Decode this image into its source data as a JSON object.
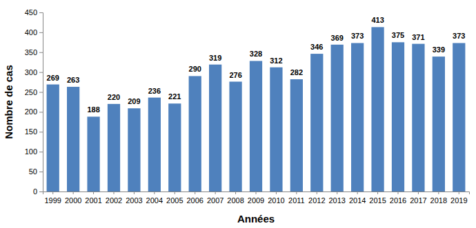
{
  "chart_data": {
    "type": "bar",
    "x_label": "Années",
    "y_label": "Nombre de cas",
    "categories": [
      "1999",
      "2000",
      "2001",
      "2002",
      "2003",
      "2004",
      "2005",
      "2006",
      "2007",
      "2008",
      "2009",
      "2010",
      "2011",
      "2012",
      "2013",
      "2014",
      "2015",
      "2016",
      "2017",
      "2018",
      "2019"
    ],
    "values": [
      269,
      263,
      188,
      220,
      209,
      236,
      221,
      290,
      319,
      276,
      328,
      312,
      282,
      346,
      369,
      373,
      413,
      375,
      371,
      339,
      373
    ],
    "color": "#4f81bd",
    "ylim": [
      0,
      450
    ],
    "yticks": [
      0,
      50,
      100,
      150,
      200,
      250,
      300,
      350,
      400,
      450
    ],
    "grid": false,
    "data_labels": true
  }
}
